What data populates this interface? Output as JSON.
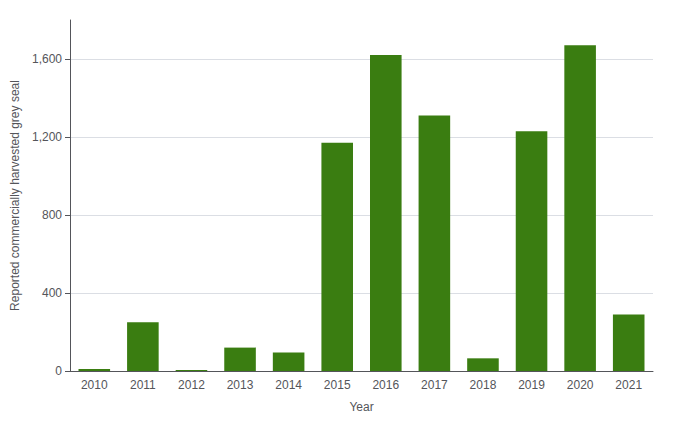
{
  "chart_data": {
    "type": "bar",
    "xlabel": "Year",
    "ylabel": "Reported commercially harvested grey seal",
    "categories": [
      "2010",
      "2011",
      "2012",
      "2013",
      "2014",
      "2015",
      "2016",
      "2017",
      "2018",
      "2019",
      "2020",
      "2021"
    ],
    "values": [
      10,
      250,
      5,
      120,
      95,
      1170,
      1620,
      1310,
      65,
      1230,
      1670,
      290
    ],
    "color": "#3a7d11",
    "ylim": [
      0,
      1800
    ],
    "yticks": [
      0,
      400,
      800,
      {
        "value": 1200,
        "label": "1,200"
      },
      {
        "value": 1600,
        "label": "1,600"
      }
    ],
    "grid": true
  }
}
